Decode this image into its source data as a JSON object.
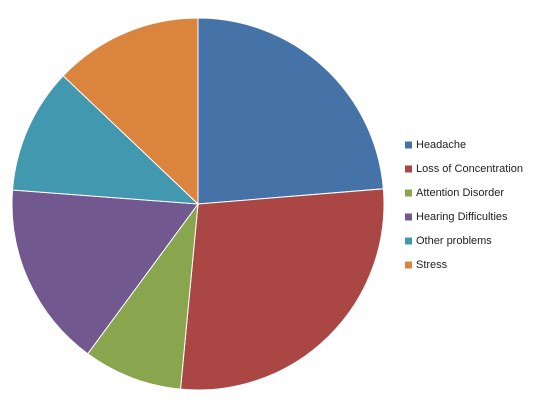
{
  "chart_data": {
    "type": "pie",
    "categories": [
      "Headache",
      "Loss of Concentration",
      "Attention Disorder",
      "Hearing Difficulties",
      "Other problems",
      "Stress"
    ],
    "values": [
      23.7,
      27.8,
      8.6,
      16.1,
      10.9,
      12.9
    ],
    "colors": [
      "#4572a7",
      "#aa4643",
      "#89a54e",
      "#71588f",
      "#4198af",
      "#db843d"
    ],
    "legend": "right"
  }
}
